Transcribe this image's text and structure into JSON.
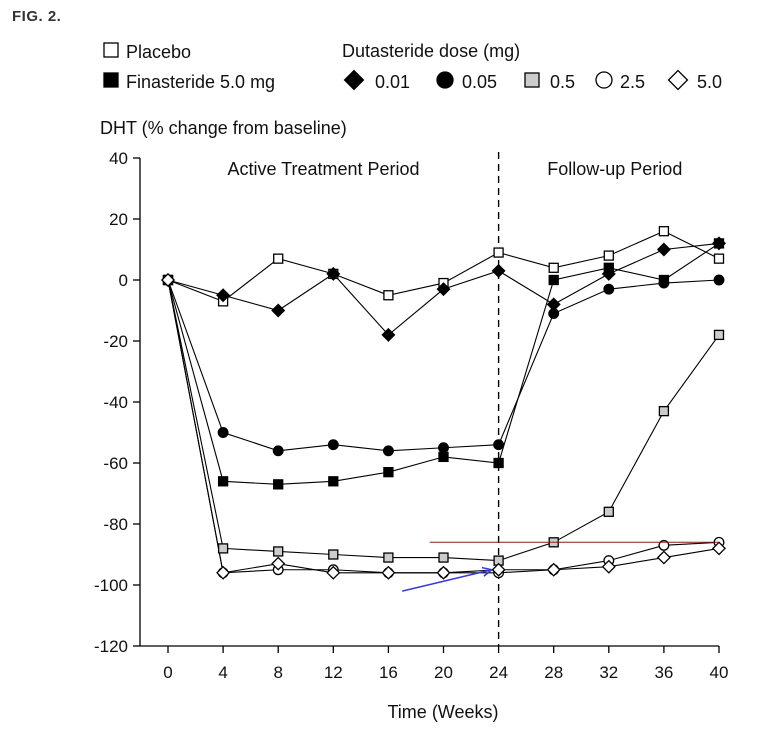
{
  "figure_label": "FIG. 2.",
  "chart_data": {
    "type": "line",
    "ylabel": "DHT (% change from baseline)",
    "xlabel": "Time (Weeks)",
    "xlim": [
      0,
      40
    ],
    "ylim": [
      -120,
      40
    ],
    "xticks": [
      0,
      4,
      8,
      12,
      16,
      20,
      24,
      28,
      32,
      36,
      40
    ],
    "yticks": [
      40,
      20,
      0,
      -20,
      -40,
      -60,
      -80,
      -100,
      -120
    ],
    "grid": false,
    "x": [
      0,
      4,
      8,
      12,
      16,
      20,
      24,
      28,
      32,
      36,
      40
    ],
    "period_divider_x": 24,
    "periods": [
      {
        "label": "Active Treatment Period",
        "center_x": 11
      },
      {
        "label": "Follow-up Period",
        "center_x": 32
      }
    ],
    "legend": {
      "group_title": "Dutasteride dose (mg)",
      "entries": [
        {
          "series": "Placebo",
          "label": "Placebo"
        },
        {
          "series": "Finasteride",
          "label": "Finasteride 5.0 mg"
        },
        {
          "series": "D0.01",
          "label": "0.01"
        },
        {
          "series": "D0.05",
          "label": "0.05"
        },
        {
          "series": "D0.5",
          "label": "0.5"
        },
        {
          "series": "D2.5",
          "label": "2.5"
        },
        {
          "series": "D5.0",
          "label": "5.0"
        }
      ]
    },
    "series": [
      {
        "name": "Placebo",
        "marker": "square",
        "fill": "#ffffff",
        "values": [
          0,
          -7,
          7,
          2,
          -5,
          -1,
          9,
          4,
          8,
          16,
          7
        ]
      },
      {
        "name": "Finasteride",
        "marker": "square",
        "fill": "#000000",
        "values": [
          0,
          -66,
          -67,
          -66,
          -63,
          -58,
          -60,
          0,
          4,
          0,
          12
        ]
      },
      {
        "name": "D0.01",
        "marker": "diamond",
        "fill": "#000000",
        "values": [
          0,
          -5,
          -10,
          2,
          -18,
          -3,
          3,
          -8,
          2,
          10,
          12
        ]
      },
      {
        "name": "D0.05",
        "marker": "circle",
        "fill": "#000000",
        "values": [
          0,
          -50,
          -56,
          -54,
          -56,
          -55,
          -54,
          -11,
          -3,
          -1,
          0
        ]
      },
      {
        "name": "D0.5",
        "marker": "square",
        "fill": "#cccccc",
        "values": [
          0,
          -88,
          -89,
          -90,
          -91,
          -91,
          -92,
          -86,
          -76,
          -43,
          -18
        ]
      },
      {
        "name": "D2.5",
        "marker": "circle",
        "fill": "#ffffff",
        "values": [
          0,
          -96,
          -95,
          -95,
          -96,
          -96,
          -96,
          -95,
          -92,
          -87,
          -86
        ]
      },
      {
        "name": "D5.0",
        "marker": "diamond",
        "fill": "#ffffff",
        "values": [
          0,
          -96,
          -93,
          -96,
          -96,
          -96,
          -95,
          -95,
          -94,
          -91,
          -88
        ]
      }
    ],
    "annotations": [
      {
        "type": "hline",
        "from_x": 19,
        "to_x": 40,
        "y": -86,
        "color": "#8b1a1a"
      },
      {
        "type": "arrow",
        "from": [
          17,
          -102
        ],
        "to": [
          23.5,
          -95
        ],
        "color": "#3a3ad6"
      }
    ]
  }
}
